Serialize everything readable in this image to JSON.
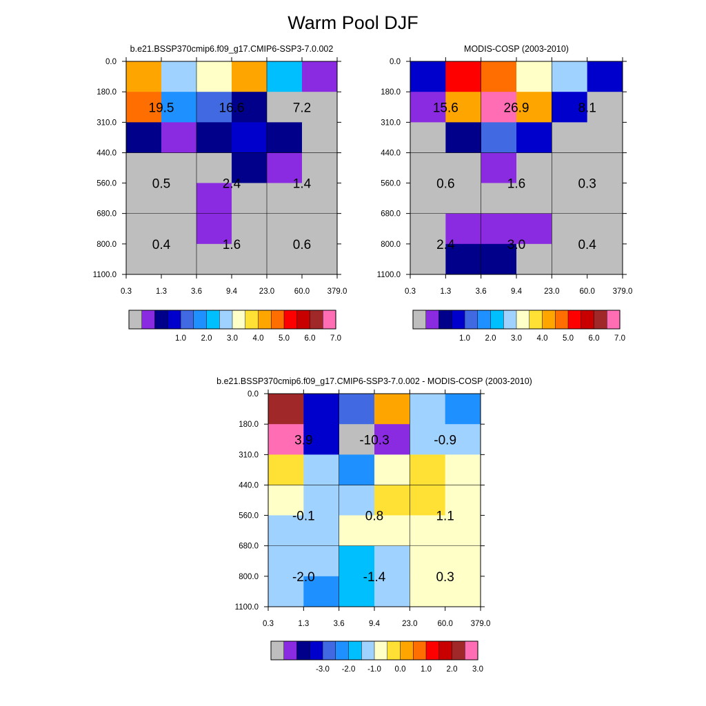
{
  "title": "Warm Pool DJF",
  "colors": {
    "abs": [
      "#bebebe",
      "#8a2be2",
      "#00008b",
      "#0000cd",
      "#4169e1",
      "#1e90ff",
      "#00bfff",
      "#a0d2ff",
      "#ffffc8",
      "#ffe135",
      "#ffa500",
      "#ff6e00",
      "#ff0000",
      "#c80000",
      "#a02828",
      "#ff6eb4"
    ],
    "diff": [
      "#bebebe",
      "#8a2be2",
      "#00008b",
      "#0000cd",
      "#4169e1",
      "#1e90ff",
      "#00bfff",
      "#a0d2ff",
      "#ffffc8",
      "#ffe135",
      "#ffa500",
      "#ff6e00",
      "#ff0000",
      "#c80000",
      "#a02828",
      "#ff6eb4"
    ]
  },
  "chart_data": [
    {
      "type": "heatmap",
      "title": "b.e21.BSSP370cmip6.f09_g17.CMIP6-SSP3-7.0.002",
      "x_ticks": [
        "0.3",
        "1.3",
        "3.6",
        "9.4",
        "23.0",
        "60.0",
        "379.0"
      ],
      "y_ticks": [
        "0.0",
        "180.0",
        "310.0",
        "440.0",
        "560.0",
        "680.0",
        "800.0",
        "1100.0"
      ],
      "cells": [
        [
          10,
          7,
          8,
          10,
          6,
          1
        ],
        [
          11,
          5,
          4,
          2,
          0,
          0
        ],
        [
          2,
          1,
          2,
          3,
          2,
          0
        ],
        [
          0,
          0,
          0,
          2,
          1,
          0
        ],
        [
          0,
          0,
          1,
          0,
          0,
          0
        ],
        [
          0,
          0,
          1,
          0,
          0,
          0
        ],
        [
          0,
          0,
          0,
          0,
          0,
          0
        ]
      ],
      "block_labels": [
        [
          "19.5",
          "16.6",
          "7.2"
        ],
        [
          "0.5",
          "2.4",
          "1.4"
        ],
        [
          "0.4",
          "1.6",
          "0.6"
        ]
      ],
      "colorbar_labels": [
        "1.0",
        "2.0",
        "3.0",
        "4.0",
        "5.0",
        "6.0",
        "7.0"
      ]
    },
    {
      "type": "heatmap",
      "title": "MODIS-COSP (2003-2010)",
      "x_ticks": [
        "0.3",
        "1.3",
        "3.6",
        "9.4",
        "23.0",
        "60.0",
        "379.0"
      ],
      "y_ticks": [
        "0.0",
        "180.0",
        "310.0",
        "440.0",
        "560.0",
        "680.0",
        "800.0",
        "1100.0"
      ],
      "cells": [
        [
          3,
          12,
          11,
          8,
          7,
          3
        ],
        [
          1,
          10,
          15,
          10,
          3,
          0
        ],
        [
          0,
          2,
          4,
          3,
          0,
          0
        ],
        [
          0,
          0,
          1,
          0,
          0,
          0
        ],
        [
          0,
          0,
          0,
          0,
          0,
          0
        ],
        [
          0,
          1,
          1,
          1,
          0,
          0
        ],
        [
          0,
          2,
          2,
          0,
          0,
          0
        ]
      ],
      "block_labels": [
        [
          "15.6",
          "26.9",
          "8.1"
        ],
        [
          "0.6",
          "1.6",
          "0.3"
        ],
        [
          "2.4",
          "3.0",
          "0.4"
        ]
      ],
      "colorbar_labels": [
        "1.0",
        "2.0",
        "3.0",
        "4.0",
        "5.0",
        "6.0",
        "7.0"
      ]
    },
    {
      "type": "heatmap",
      "title": "b.e21.BSSP370cmip6.f09_g17.CMIP6-SSP3-7.0.002 - MODIS-COSP (2003-2010)",
      "x_ticks": [
        "0.3",
        "1.3",
        "3.6",
        "9.4",
        "23.0",
        "60.0",
        "379.0"
      ],
      "y_ticks": [
        "0.0",
        "180.0",
        "310.0",
        "440.0",
        "560.0",
        "680.0",
        "800.0",
        "1100.0"
      ],
      "cells": [
        [
          14,
          3,
          4,
          10,
          7,
          5
        ],
        [
          15,
          3,
          0,
          1,
          7,
          7
        ],
        [
          9,
          7,
          5,
          8,
          9,
          8
        ],
        [
          8,
          7,
          7,
          9,
          9,
          8
        ],
        [
          7,
          7,
          8,
          8,
          8,
          8
        ],
        [
          7,
          7,
          6,
          7,
          8,
          8
        ],
        [
          7,
          5,
          6,
          7,
          8,
          8
        ]
      ],
      "block_labels": [
        [
          "3.9",
          "-10.3",
          "-0.9"
        ],
        [
          "-0.1",
          "0.8",
          "1.1"
        ],
        [
          "-2.0",
          "-1.4",
          "0.3"
        ]
      ],
      "colorbar_labels": [
        "-3.0",
        "-2.0",
        "-1.0",
        "0.0",
        "1.0",
        "2.0",
        "3.0"
      ]
    }
  ]
}
